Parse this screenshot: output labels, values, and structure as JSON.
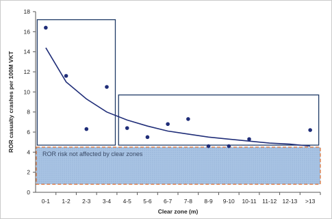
{
  "chart_data": {
    "type": "scatter",
    "xlabel": "Clear zone (m)",
    "ylabel": "ROR casualty crashes per 100M VKT",
    "ylim": [
      0,
      18
    ],
    "yticks": [
      0,
      2,
      4,
      6,
      8,
      10,
      12,
      14,
      16,
      18
    ],
    "categories": [
      "0-1",
      "1-2",
      "2-3",
      "3-4",
      "4-5",
      "5-6",
      "6-7",
      "7-8",
      "8-9",
      "9-10",
      "10-11",
      "11-12",
      "12-13",
      ">13"
    ],
    "series": [
      {
        "type": "scatter",
        "values": [
          16.4,
          11.6,
          6.3,
          10.5,
          6.4,
          5.5,
          6.8,
          7.3,
          4.6,
          4.6,
          5.3,
          null,
          null,
          6.2
        ]
      },
      {
        "type": "line",
        "values": [
          14.4,
          11.0,
          9.3,
          8.0,
          7.2,
          6.6,
          6.1,
          5.8,
          5.5,
          5.3,
          5.1,
          4.9,
          4.8,
          4.6
        ]
      }
    ],
    "highlight_boxes": [
      {
        "x_from": "0-1",
        "x_to": "3-4",
        "y_from": 4.7,
        "y_to": 17.2
      },
      {
        "x_from": "4-5",
        "x_to": ">13",
        "y_from": 4.7,
        "y_to": 9.7
      }
    ],
    "shaded_band": {
      "y_from": 0.8,
      "y_to": 4.5,
      "label": "ROR risk not affected by clear zones"
    },
    "grid": false,
    "legend": "none",
    "colors": {
      "points": "#1f2d78",
      "curve": "#1f2d78",
      "boxes": "#1f3a66",
      "band_fill": "#a9c4e4",
      "band_border": "#e07030"
    }
  }
}
